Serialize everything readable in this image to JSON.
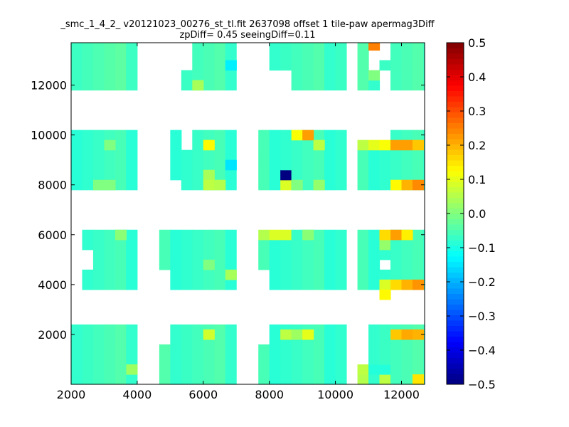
{
  "chart_data": {
    "type": "heatmap",
    "title_line1": "_smc_1_4_2_ v20121023_00276_st_tl.fit 2637098 offset 1 tile-paw apermag3Diff",
    "title_line2": "zpDiff= 0.45 seeingDiff=0.11",
    "xlabel": "",
    "ylabel": "",
    "xlim": [
      2000,
      12700
    ],
    "ylim": [
      0,
      13700
    ],
    "x_ticks": [
      2000,
      4000,
      6000,
      8000,
      10000,
      12000
    ],
    "y_ticks": [
      2000,
      4000,
      6000,
      8000,
      10000,
      12000
    ],
    "x_tick_labels": [
      "2000",
      "4000",
      "6000",
      "8000",
      "10000",
      "12000"
    ],
    "y_tick_labels": [
      "2000",
      "4000",
      "6000",
      "8000",
      "10000",
      "12000"
    ],
    "colorbar": {
      "colormap": "jet",
      "range": [
        -0.5,
        0.5
      ],
      "ticks": [
        -0.5,
        -0.4,
        -0.3,
        -0.2,
        -0.1,
        0.0,
        0.1,
        0.2,
        0.3,
        0.4,
        0.5
      ],
      "tick_labels": [
        "−0.5",
        "−0.4",
        "−0.3",
        "−0.2",
        "−0.1",
        "0.0",
        "0.1",
        "0.2",
        "0.3",
        "0.4",
        "0.5"
      ]
    },
    "cell_width": 333,
    "cell_height": 400,
    "default_value": -0.06,
    "regions": [
      {
        "x": [
          2000,
          3667
        ],
        "y": [
          0,
          2200
        ],
        "value": -0.06
      },
      {
        "x": [
          4667,
          6667
        ],
        "y": [
          0,
          2200
        ],
        "value": -0.06
      },
      {
        "x": [
          7667,
          10000
        ],
        "y": [
          0,
          2200
        ],
        "value": -0.07
      },
      {
        "x": [
          10667,
          12667
        ],
        "y": [
          0,
          2200
        ],
        "value": -0.06
      },
      {
        "x": [
          2333,
          3667
        ],
        "y": [
          3800,
          6000
        ],
        "value": -0.07
      },
      {
        "x": [
          4667,
          6667
        ],
        "y": [
          3800,
          6000
        ],
        "value": -0.07
      },
      {
        "x": [
          7667,
          10000
        ],
        "y": [
          3800,
          6000
        ],
        "value": -0.07
      },
      {
        "x": [
          10667,
          12667
        ],
        "y": [
          3800,
          6000
        ],
        "value": -0.07
      },
      {
        "x": [
          2000,
          3667
        ],
        "y": [
          7800,
          10000
        ],
        "value": -0.07
      },
      {
        "x": [
          4667,
          6667
        ],
        "y": [
          7800,
          10000
        ],
        "value": -0.07
      },
      {
        "x": [
          7667,
          10000
        ],
        "y": [
          7800,
          10000
        ],
        "value": -0.07
      },
      {
        "x": [
          10667,
          12667
        ],
        "y": [
          7800,
          10000
        ],
        "value": -0.07
      },
      {
        "x": [
          2000,
          3667
        ],
        "y": [
          11800,
          13700
        ],
        "value": -0.05
      },
      {
        "x": [
          4667,
          6667
        ],
        "y": [
          11800,
          13700
        ],
        "value": -0.06
      },
      {
        "x": [
          7667,
          10000
        ],
        "y": [
          11800,
          13700
        ],
        "value": -0.06
      },
      {
        "x": [
          10667,
          12667
        ],
        "y": [
          11800,
          13700
        ],
        "value": -0.06
      }
    ],
    "missing_cells": [
      [
        2000,
        4600
      ],
      [
        2000,
        5000
      ],
      [
        2000,
        5400
      ],
      [
        2000,
        5800
      ],
      [
        2333,
        4600
      ],
      [
        2333,
        5000
      ],
      [
        3333,
        5000
      ],
      [
        3333,
        4200
      ],
      [
        3333,
        11800
      ],
      [
        3667,
        11800
      ],
      [
        3333,
        9800
      ],
      [
        3333,
        9400
      ],
      [
        3333,
        9000
      ],
      [
        3333,
        8600
      ],
      [
        3333,
        8200
      ],
      [
        2000,
        13200
      ],
      [
        2333,
        13200
      ],
      [
        4667,
        9800
      ],
      [
        4667,
        9400
      ],
      [
        4667,
        9000
      ],
      [
        4667,
        8600
      ],
      [
        4667,
        8200
      ],
      [
        4667,
        11800
      ],
      [
        4667,
        12200
      ],
      [
        4667,
        12600
      ],
      [
        4667,
        13000
      ],
      [
        4667,
        13400
      ],
      [
        4667,
        4200
      ],
      [
        4667,
        3800
      ],
      [
        4667,
        3400
      ],
      [
        5000,
        11800
      ],
      [
        5000,
        12200
      ],
      [
        5000,
        12600
      ],
      [
        5000,
        13000
      ],
      [
        5000,
        13400
      ],
      [
        5333,
        13000
      ],
      [
        5333,
        13400
      ],
      [
        5333,
        12600
      ],
      [
        5333,
        9800
      ],
      [
        5333,
        9400
      ],
      [
        5667,
        13000
      ],
      [
        5667,
        13400
      ],
      [
        5667,
        12600
      ],
      [
        5667,
        9800
      ],
      [
        5667,
        9400
      ],
      [
        6000,
        13000
      ],
      [
        6000,
        13400
      ],
      [
        6000,
        12600
      ],
      [
        6000,
        12200
      ],
      [
        6000,
        11800
      ],
      [
        6000,
        9400
      ],
      [
        6333,
        13000
      ],
      [
        6333,
        13400
      ],
      [
        6333,
        12600
      ],
      [
        6333,
        12200
      ],
      [
        6333,
        11800
      ],
      [
        6333,
        9800
      ],
      [
        6333,
        9400
      ],
      [
        6333,
        8600
      ],
      [
        6667,
        12200
      ],
      [
        6667,
        11800
      ],
      [
        6667,
        13000
      ],
      [
        6667,
        13400
      ],
      [
        6333,
        3800
      ],
      [
        6333,
        4200
      ],
      [
        6333,
        4600
      ],
      [
        6333,
        5000
      ],
      [
        6333,
        5400
      ],
      [
        6333,
        5800
      ],
      [
        6667,
        0
      ],
      [
        6667,
        400
      ],
      [
        6667,
        800
      ],
      [
        6667,
        1200
      ],
      [
        6667,
        1600
      ],
      [
        6667,
        2000
      ],
      [
        6667,
        7800
      ],
      [
        6667,
        8200
      ],
      [
        6667,
        8600
      ],
      [
        6667,
        9000
      ],
      [
        6667,
        9400
      ],
      [
        6667,
        9800
      ],
      [
        4667,
        1600
      ],
      [
        4667,
        2000
      ],
      [
        4667,
        7800
      ],
      [
        5000,
        7800
      ],
      [
        7667,
        11800
      ],
      [
        7667,
        12200
      ],
      [
        7667,
        12600
      ],
      [
        7667,
        13000
      ],
      [
        7667,
        13400
      ],
      [
        8000,
        11800
      ],
      [
        8000,
        12200
      ],
      [
        8333,
        11800
      ],
      [
        8333,
        12200
      ],
      [
        9333,
        11800
      ],
      [
        9667,
        11800
      ],
      [
        9667,
        12200
      ],
      [
        9667,
        12600
      ],
      [
        10000,
        13400
      ],
      [
        10000,
        13000
      ],
      [
        8667,
        9800
      ],
      [
        9000,
        9800
      ],
      [
        9333,
        9800
      ],
      [
        9667,
        9800
      ],
      [
        10000,
        9800
      ],
      [
        10000,
        9400
      ],
      [
        10000,
        9000
      ],
      [
        10000,
        8600
      ],
      [
        10000,
        8200
      ],
      [
        10000,
        7800
      ],
      [
        9333,
        8600
      ],
      [
        9667,
        8600
      ],
      [
        9667,
        9000
      ],
      [
        9333,
        9000
      ],
      [
        9667,
        3800
      ],
      [
        10000,
        3800
      ],
      [
        10000,
        4200
      ],
      [
        10000,
        4600
      ],
      [
        10000,
        5000
      ],
      [
        10000,
        5400
      ],
      [
        10000,
        5800
      ],
      [
        9667,
        4200
      ],
      [
        9667,
        4600
      ],
      [
        7667,
        3800
      ],
      [
        7667,
        4200
      ],
      [
        7667,
        1600
      ],
      [
        7667,
        2000
      ],
      [
        10000,
        1600
      ],
      [
        10000,
        2000
      ],
      [
        10000,
        1200
      ],
      [
        10000,
        800
      ],
      [
        10667,
        1600
      ],
      [
        10667,
        2000
      ],
      [
        10667,
        1200
      ],
      [
        10667,
        800
      ],
      [
        11333,
        11800
      ],
      [
        11333,
        12200
      ],
      [
        11333,
        13000
      ],
      [
        11333,
        13400
      ],
      [
        11667,
        11800
      ],
      [
        11667,
        13000
      ],
      [
        11667,
        13400
      ],
      [
        12000,
        11800
      ],
      [
        12000,
        12200
      ],
      [
        12000,
        12600
      ],
      [
        12000,
        13000
      ],
      [
        12000,
        13400
      ],
      [
        12333,
        11800
      ],
      [
        12333,
        12200
      ],
      [
        12333,
        12600
      ],
      [
        12333,
        13000
      ],
      [
        12333,
        13400
      ],
      [
        11000,
        12600
      ],
      [
        11000,
        13000
      ],
      [
        10667,
        9800
      ],
      [
        11000,
        9800
      ],
      [
        11333,
        9800
      ],
      [
        11667,
        9800
      ],
      [
        12000,
        9800
      ],
      [
        12333,
        9800
      ],
      [
        11667,
        8600
      ],
      [
        11667,
        8200
      ],
      [
        11667,
        7800
      ],
      [
        12000,
        8600
      ],
      [
        12333,
        8600
      ],
      [
        12333,
        9000
      ],
      [
        12000,
        9000
      ],
      [
        11333,
        3800
      ],
      [
        11667,
        3800
      ],
      [
        12000,
        3800
      ],
      [
        12333,
        3800
      ],
      [
        12000,
        5800
      ],
      [
        12333,
        5800
      ],
      [
        12333,
        5400
      ],
      [
        12333,
        5000
      ],
      [
        12333,
        4600
      ],
      [
        11667,
        4600
      ],
      [
        11333,
        4600
      ],
      [
        12000,
        0
      ],
      [
        12000,
        400
      ],
      [
        12000,
        800
      ],
      [
        12000,
        1200
      ],
      [
        12333,
        400
      ],
      [
        12333,
        800
      ],
      [
        12333,
        1200
      ],
      [
        12333,
        1600
      ],
      [
        11667,
        0
      ]
    ],
    "cells": [
      {
        "x": 11000,
        "y": 13400,
        "value": 0.25
      },
      {
        "x": 6667,
        "y": 12600,
        "value": -0.14
      },
      {
        "x": 5667,
        "y": 11800,
        "value": 0.04
      },
      {
        "x": 8667,
        "y": 9800,
        "value": 0.12
      },
      {
        "x": 9000,
        "y": 9800,
        "value": 0.22
      },
      {
        "x": 6000,
        "y": 9400,
        "value": 0.13
      },
      {
        "x": 9333,
        "y": 9400,
        "value": 0.06
      },
      {
        "x": 10667,
        "y": 9400,
        "value": 0.06
      },
      {
        "x": 11000,
        "y": 9400,
        "value": 0.1
      },
      {
        "x": 11333,
        "y": 9400,
        "value": 0.12
      },
      {
        "x": 11667,
        "y": 9400,
        "value": 0.22
      },
      {
        "x": 12000,
        "y": 9400,
        "value": 0.22
      },
      {
        "x": 12333,
        "y": 9400,
        "value": 0.18
      },
      {
        "x": 3000,
        "y": 9400,
        "value": 0.0
      },
      {
        "x": 2667,
        "y": 7800,
        "value": 0.0
      },
      {
        "x": 3000,
        "y": 7800,
        "value": 0.0
      },
      {
        "x": 6667,
        "y": 8600,
        "value": -0.15
      },
      {
        "x": 6000,
        "y": 8200,
        "value": 0.04
      },
      {
        "x": 6000,
        "y": 7800,
        "value": 0.06
      },
      {
        "x": 6333,
        "y": 7800,
        "value": 0.05
      },
      {
        "x": 8333,
        "y": 8200,
        "value": -0.5
      },
      {
        "x": 8333,
        "y": 7800,
        "value": 0.09
      },
      {
        "x": 8667,
        "y": 7800,
        "value": 0.0
      },
      {
        "x": 9333,
        "y": 7800,
        "value": 0.02
      },
      {
        "x": 11667,
        "y": 7800,
        "value": 0.13
      },
      {
        "x": 12000,
        "y": 7800,
        "value": 0.2
      },
      {
        "x": 12333,
        "y": 7800,
        "value": 0.24
      },
      {
        "x": 7667,
        "y": 5800,
        "value": 0.05
      },
      {
        "x": 8000,
        "y": 5800,
        "value": 0.09
      },
      {
        "x": 8333,
        "y": 5800,
        "value": 0.09
      },
      {
        "x": 9000,
        "y": 5800,
        "value": 0.01
      },
      {
        "x": 3333,
        "y": 5800,
        "value": 0.01
      },
      {
        "x": 11333,
        "y": 5800,
        "value": 0.16
      },
      {
        "x": 11667,
        "y": 5800,
        "value": 0.22
      },
      {
        "x": 12000,
        "y": 5800,
        "value": 0.14
      },
      {
        "x": 11333,
        "y": 5400,
        "value": 0.02
      },
      {
        "x": 6000,
        "y": 4600,
        "value": 0.0
      },
      {
        "x": 6667,
        "y": 4200,
        "value": 0.04
      },
      {
        "x": 11333,
        "y": 3800,
        "value": 0.09
      },
      {
        "x": 11667,
        "y": 3800,
        "value": 0.16
      },
      {
        "x": 12000,
        "y": 3800,
        "value": 0.2
      },
      {
        "x": 12333,
        "y": 3800,
        "value": 0.23
      },
      {
        "x": 11333,
        "y": 3400,
        "value": 0.13
      },
      {
        "x": 6000,
        "y": 1800,
        "value": 0.08
      },
      {
        "x": 8333,
        "y": 1800,
        "value": 0.06
      },
      {
        "x": 8667,
        "y": 1800,
        "value": 0.03
      },
      {
        "x": 9000,
        "y": 1800,
        "value": 0.1
      },
      {
        "x": 11667,
        "y": 1800,
        "value": 0.18
      },
      {
        "x": 12000,
        "y": 1800,
        "value": 0.21
      },
      {
        "x": 12333,
        "y": 1800,
        "value": 0.2
      },
      {
        "x": 3667,
        "y": 400,
        "value": 0.03
      },
      {
        "x": 10667,
        "y": 0,
        "value": 0.05
      },
      {
        "x": 10667,
        "y": 400,
        "value": 0.06
      },
      {
        "x": 11000,
        "y": 400,
        "value": -0.09
      },
      {
        "x": 11333,
        "y": 400,
        "value": -0.09
      },
      {
        "x": 11333,
        "y": 0,
        "value": 0.06
      },
      {
        "x": 12333,
        "y": 0,
        "value": 0.15
      },
      {
        "x": 11000,
        "y": 12200,
        "value": 0.0
      }
    ]
  }
}
